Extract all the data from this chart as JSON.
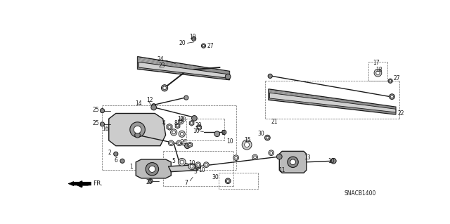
{
  "bg_color": "#ffffff",
  "diagram_code": "SNACB1400",
  "line_color": "#1a1a1a",
  "gray_dark": "#555555",
  "gray_med": "#888888",
  "gray_light": "#cccccc"
}
